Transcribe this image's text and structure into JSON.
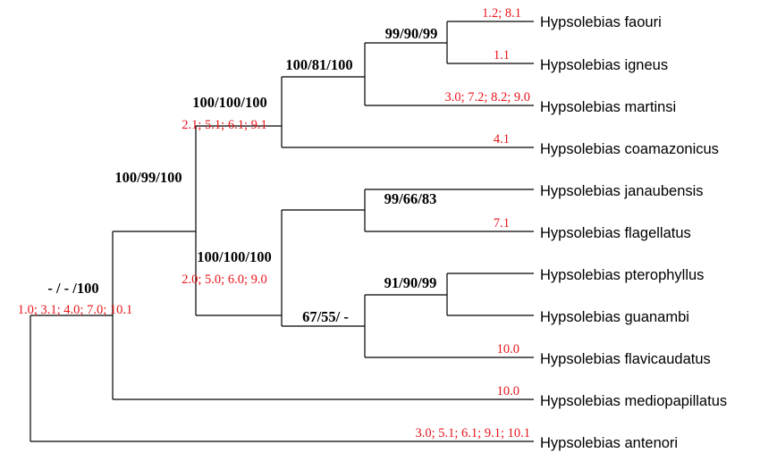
{
  "colors": {
    "branch": "#000000",
    "character_changes": "#e8141a",
    "support": "#000000"
  },
  "taxa": [
    "Hypsolebias faouri",
    "Hypsolebias igneus",
    "Hypsolebias martinsi",
    "Hypsolebias coamazonicus",
    "Hypsolebias janaubensis",
    "Hypsolebias flagellatus",
    "Hypsolebias pterophyllus",
    "Hypsolebias guanambi",
    "Hypsolebias flavicaudatus",
    "Hypsolebias mediopapillatus",
    "Hypsolebias antenori"
  ],
  "terminal_character_changes": [
    "1.2; 8.1",
    "1.1",
    "3.0; 7.2; 8.2; 9.0",
    "4.1",
    "",
    "7.1",
    "",
    "",
    "10.0",
    "10.0",
    "3.0; 5.1; 6.1; 9.1; 10.1"
  ],
  "nodes": {
    "root": {
      "support": "- / - /100",
      "characters": "1.0; 3.1; 4.0; 7.0; 10.1"
    },
    "n1": {
      "support": "100/99/100",
      "characters": ""
    },
    "n2": {
      "support": "100/100/100",
      "characters": "2.1; 5.1; 6.1; 9.1"
    },
    "n3": {
      "support": "100/81/100",
      "characters": ""
    },
    "n4": {
      "support": "99/90/99",
      "characters": ""
    },
    "n5": {
      "support": "100/100/100",
      "characters": "2.0; 5.0; 6.0; 9.0"
    },
    "n6": {
      "support": "99/66/83",
      "characters": ""
    },
    "n7": {
      "support": "67/55/ -",
      "characters": ""
    },
    "n8": {
      "support": "91/90/99",
      "characters": ""
    }
  }
}
